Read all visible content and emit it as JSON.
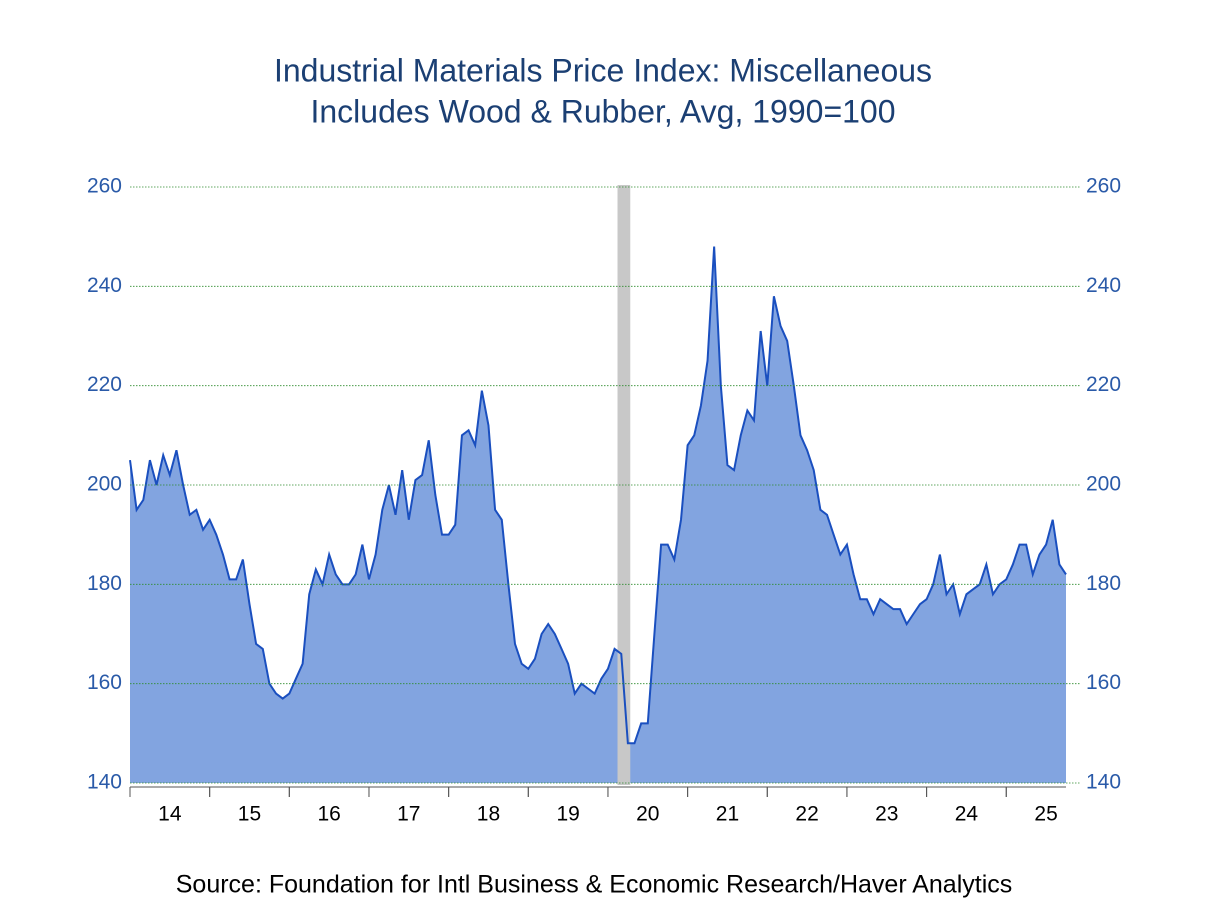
{
  "chart_data": {
    "type": "area",
    "title": "Industrial Materials Price Index: Miscellaneous",
    "subtitle": "Includes Wood & Rubber, Avg, 1990=100",
    "source": "Source:  Foundation for Intl Business & Economic Research/Haver Analytics",
    "x": [
      14.0,
      14.083,
      14.167,
      14.25,
      14.333,
      14.417,
      14.5,
      14.583,
      14.667,
      14.75,
      14.833,
      14.917,
      15.0,
      15.083,
      15.167,
      15.25,
      15.333,
      15.417,
      15.5,
      15.583,
      15.667,
      15.75,
      15.833,
      15.917,
      16.0,
      16.083,
      16.167,
      16.25,
      16.333,
      16.417,
      16.5,
      16.583,
      16.667,
      16.75,
      16.833,
      16.917,
      17.0,
      17.083,
      17.167,
      17.25,
      17.333,
      17.417,
      17.5,
      17.583,
      17.667,
      17.75,
      17.833,
      17.917,
      18.0,
      18.083,
      18.167,
      18.25,
      18.333,
      18.417,
      18.5,
      18.583,
      18.667,
      18.75,
      18.833,
      18.917,
      19.0,
      19.083,
      19.167,
      19.25,
      19.333,
      19.417,
      19.5,
      19.583,
      19.667,
      19.75,
      19.833,
      19.917,
      20.0,
      20.083,
      20.167,
      20.25,
      20.333,
      20.417,
      20.5,
      20.583,
      20.667,
      20.75,
      20.833,
      20.917,
      21.0,
      21.083,
      21.167,
      21.25,
      21.333,
      21.417,
      21.5,
      21.583,
      21.667,
      21.75,
      21.833,
      21.917,
      22.0,
      22.083,
      22.167,
      22.25,
      22.333,
      22.417,
      22.5,
      22.583,
      22.667,
      22.75,
      22.833,
      22.917,
      23.0,
      23.083,
      23.167,
      23.25,
      23.333,
      23.417,
      23.5,
      23.583,
      23.667,
      23.75,
      23.833,
      23.917,
      24.0,
      24.083,
      24.167,
      24.25,
      24.333,
      24.417,
      24.5,
      24.583,
      24.667,
      24.75,
      24.833,
      24.917,
      25.0,
      25.083,
      25.167,
      25.25,
      25.333,
      25.417,
      25.5,
      25.583,
      25.667,
      25.75
    ],
    "series": [
      {
        "name": "Miscellaneous",
        "color": "#1a4fbf",
        "fill": "#82a4e0",
        "values": [
          205,
          195,
          197,
          205,
          200,
          206,
          202,
          207,
          200,
          194,
          195,
          191,
          193,
          190,
          186,
          181,
          181,
          185,
          176,
          168,
          167,
          160,
          158,
          157,
          158,
          161,
          164,
          178,
          183,
          180,
          186,
          182,
          180,
          180,
          182,
          188,
          181,
          186,
          195,
          200,
          194,
          203,
          193,
          201,
          202,
          209,
          198,
          190,
          190,
          192,
          210,
          211,
          208,
          219,
          212,
          195,
          193,
          180,
          168,
          164,
          163,
          165,
          170,
          172,
          170,
          167,
          164,
          158,
          160,
          159,
          158,
          161,
          163,
          167,
          166,
          148,
          148,
          152,
          152,
          170,
          188,
          188,
          185,
          193,
          208,
          210,
          216,
          225,
          248,
          220,
          204,
          203,
          210,
          215,
          213,
          231,
          220,
          238,
          232,
          229,
          220,
          210,
          207,
          203,
          195,
          194,
          190,
          186,
          188,
          182,
          177,
          177,
          174,
          177,
          176,
          175,
          175,
          172,
          174,
          176,
          177,
          180,
          186,
          178,
          180,
          174,
          178,
          179,
          180,
          184,
          178,
          180,
          181,
          184,
          188,
          188,
          182,
          186,
          188,
          193,
          184,
          182
        ]
      }
    ],
    "xlim": [
      14,
      25.75
    ],
    "xticks": [
      {
        "value": 14.5,
        "label": "14"
      },
      {
        "value": 15.5,
        "label": "15"
      },
      {
        "value": 16.5,
        "label": "16"
      },
      {
        "value": 17.5,
        "label": "17"
      },
      {
        "value": 18.5,
        "label": "18"
      },
      {
        "value": 19.5,
        "label": "19"
      },
      {
        "value": 20.5,
        "label": "20"
      },
      {
        "value": 21.5,
        "label": "21"
      },
      {
        "value": 22.5,
        "label": "22"
      },
      {
        "value": 23.5,
        "label": "23"
      },
      {
        "value": 24.5,
        "label": "24"
      },
      {
        "value": 25.5,
        "label": "25"
      }
    ],
    "ylim": [
      140,
      260
    ],
    "yticks": [
      140,
      160,
      180,
      200,
      220,
      240,
      260
    ],
    "grid": true,
    "recession": [
      {
        "start": 20.12,
        "end": 20.28,
        "color": "#c8c8c8"
      }
    ]
  }
}
